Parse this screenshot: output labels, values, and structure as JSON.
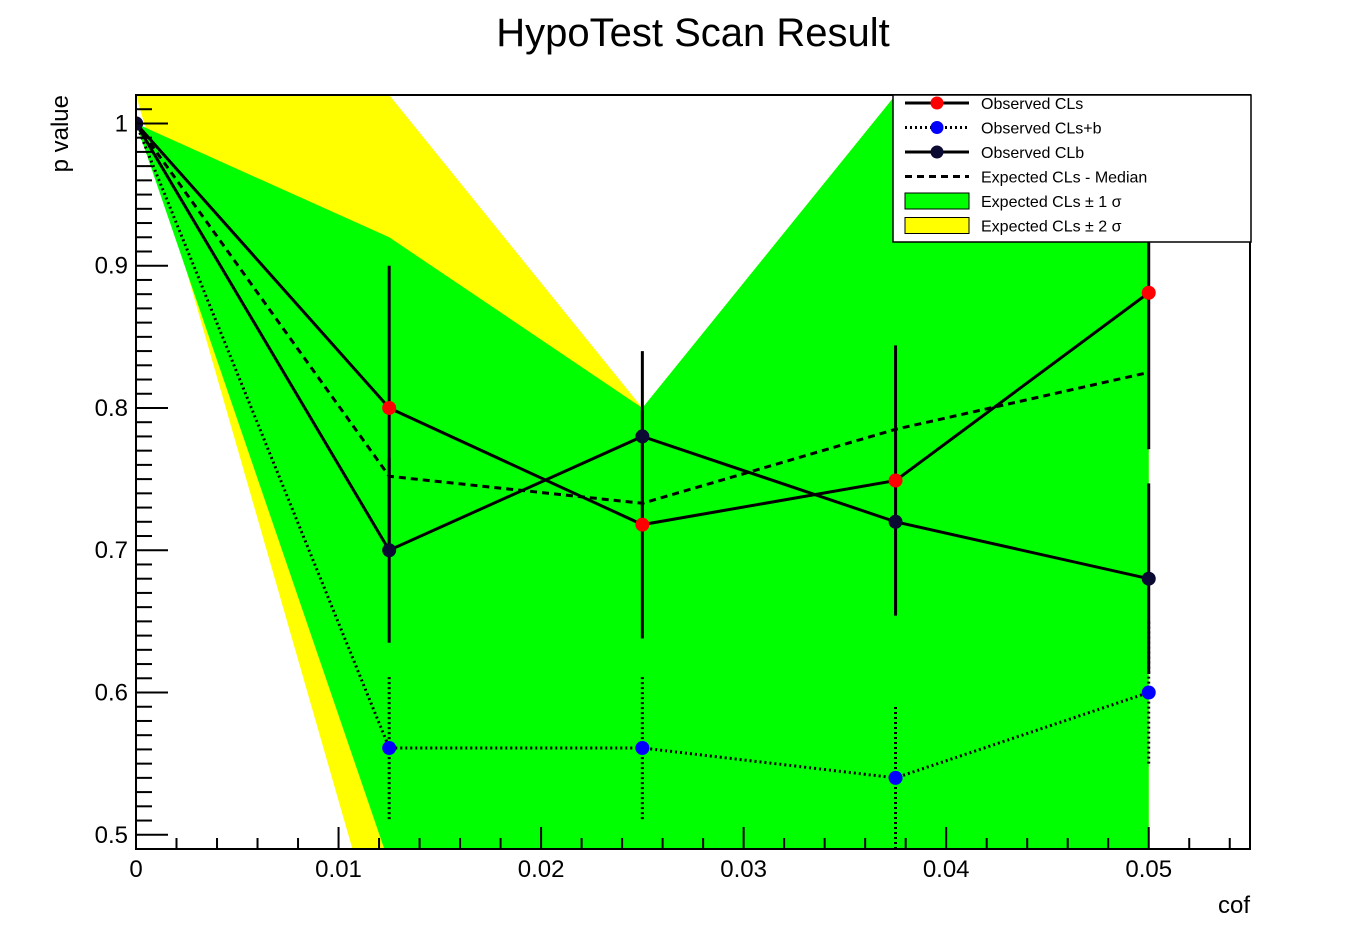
{
  "chart_data": {
    "type": "line",
    "title": "HypoTest Scan Result",
    "xlabel": "cof",
    "ylabel": "p value",
    "xlim": [
      0,
      0.055
    ],
    "ylim": [
      0.49,
      1.02
    ],
    "x_ticks": [
      0,
      0.01,
      0.02,
      0.03,
      0.04,
      0.05
    ],
    "x_tick_labels": [
      "0",
      "0.01",
      "0.02",
      "0.03",
      "0.04",
      "0.05"
    ],
    "y_ticks": [
      0.5,
      0.6,
      0.7,
      0.8,
      0.9,
      1.0
    ],
    "y_tick_labels": [
      "0.5",
      "0.6",
      "0.7",
      "0.8",
      "0.9",
      "1"
    ],
    "x": [
      0,
      0.0125,
      0.025,
      0.0375,
      0.05
    ],
    "series": [
      {
        "name": "Observed CLs",
        "style": "solid",
        "color": "#ff0000",
        "values": [
          1.0,
          0.8,
          0.718,
          0.749,
          0.881
        ],
        "err": [
          0,
          0.1,
          0.08,
          0.095,
          0.11
        ]
      },
      {
        "name": "Observed CLs+b",
        "style": "dotted",
        "color": "#0000ff",
        "values": [
          1.0,
          0.561,
          0.561,
          0.54,
          0.6
        ],
        "err": [
          0,
          0.05,
          0.05,
          0.05,
          0.05
        ]
      },
      {
        "name": "Observed CLb",
        "style": "solid",
        "color": "#0a0a33",
        "values": [
          1.0,
          0.7,
          0.78,
          0.72,
          0.68
        ],
        "err": [
          0,
          0.065,
          0.06,
          0.065,
          0.067
        ]
      },
      {
        "name": "Expected CLs - Median",
        "style": "dashed",
        "color": "#000000",
        "values": [
          1.0,
          0.752,
          0.733,
          0.785,
          0.825
        ]
      }
    ],
    "band_1sigma": {
      "name": "Expected CLs ± 1 σ",
      "color": "#00ff00",
      "upper": [
        1.0,
        0.92,
        0.8,
        1.02,
        0.92
      ],
      "lower": [
        1.0,
        0.48,
        0.48,
        0.48,
        0.49
      ]
    },
    "band_2sigma": {
      "name": "Expected CLs ± 2 σ",
      "color": "#ffff00",
      "upper": [
        1.02,
        1.02,
        0.8,
        1.02,
        0.92
      ],
      "lower": [
        1.02,
        0.4,
        0.4,
        0.64,
        0.4
      ]
    },
    "legend_position": "top-right",
    "legend_entries": [
      "Observed CLs",
      "Observed CLs+b",
      "Observed CLb",
      "Expected CLs - Median",
      "Expected CLs ± 1 σ",
      "Expected CLs ± 2 σ"
    ],
    "grid": false
  }
}
